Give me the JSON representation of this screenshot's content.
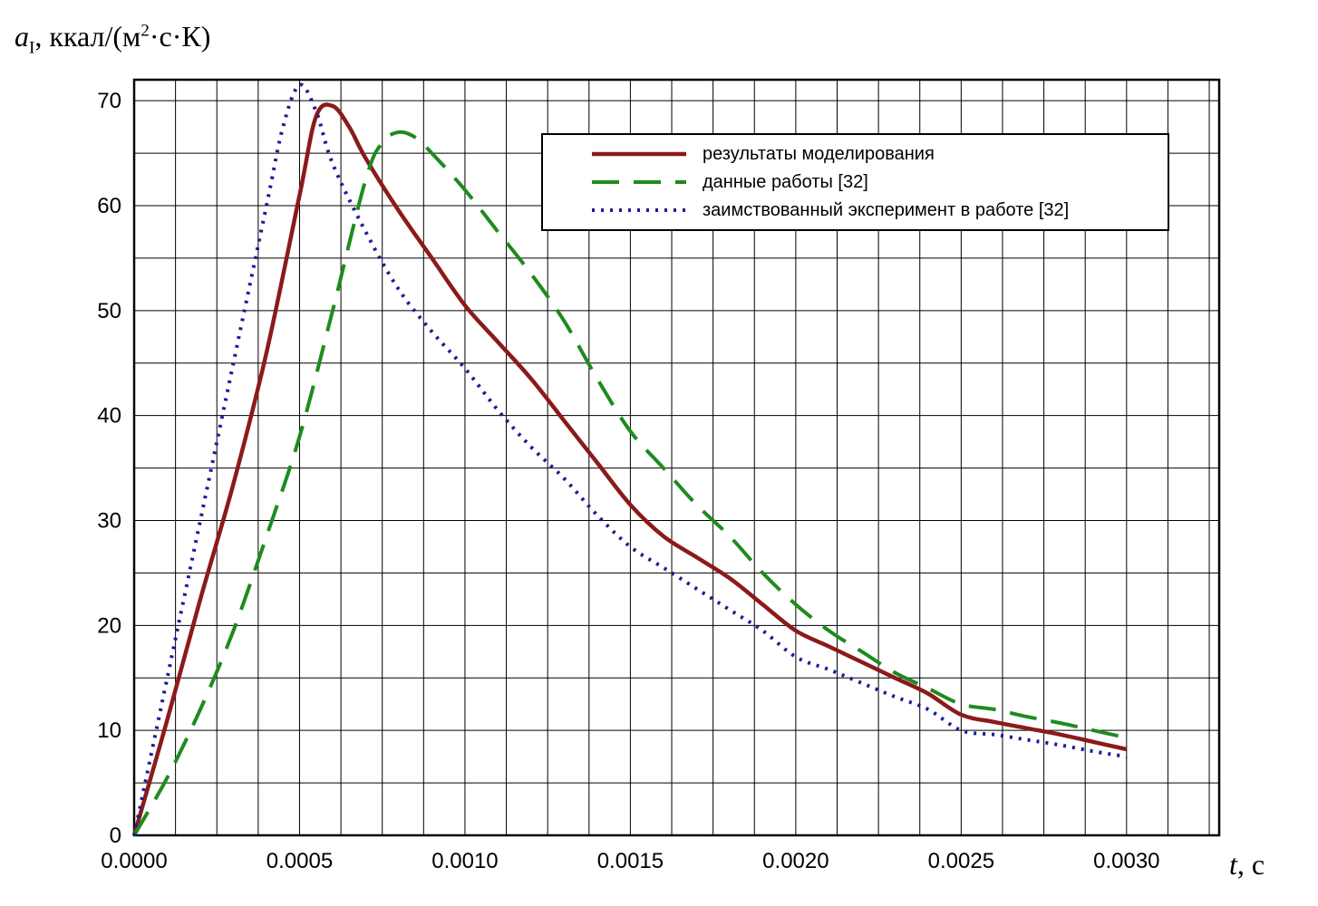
{
  "y_axis_title": {
    "variable": "a",
    "subscript": "I",
    "unit_prefix": ", ккал/(м",
    "superscript": "2",
    "unit_suffix": "·с·К)"
  },
  "x_axis_title": {
    "variable": "t",
    "suffix": ", с"
  },
  "chart_data": {
    "type": "line",
    "title": "",
    "xlabel": "t, с",
    "ylabel": "aI, ккал/(м2·с·К)",
    "xlim": [
      0,
      0.00328
    ],
    "ylim": [
      0,
      72
    ],
    "x_major_ticks": [
      0.0,
      0.0005,
      0.001,
      0.0015,
      0.002,
      0.0025,
      0.003
    ],
    "x_tick_labels": [
      "0.0000",
      "0.0005",
      "0.0010",
      "0.0015",
      "0.0020",
      "0.0025",
      "0.0030"
    ],
    "x_grid_step": 0.000125,
    "y_ticks": [
      0,
      10,
      20,
      30,
      40,
      50,
      60,
      70
    ],
    "y_grid_step": 5,
    "grid": true,
    "grid_color": "#000000",
    "frame_color": "#000000",
    "background": "#ffffff",
    "legend_position": "upper-right-inside",
    "series": [
      {
        "name": "результаты моделирования",
        "color": "#8b1a1a",
        "style": "solid",
        "width": 4.5,
        "x": [
          0,
          0.0001,
          0.0002,
          0.0003,
          0.0004,
          0.0005,
          0.00055,
          0.0006,
          0.00065,
          0.0007,
          0.0008,
          0.0009,
          0.001,
          0.0011,
          0.0012,
          0.0013,
          0.0014,
          0.0015,
          0.0016,
          0.0017,
          0.0018,
          0.0019,
          0.002,
          0.0021,
          0.0022,
          0.0023,
          0.0024,
          0.0025,
          0.0026,
          0.0027,
          0.0028,
          0.0029,
          0.003
        ],
        "y": [
          0,
          11,
          22.5,
          33.5,
          46,
          61,
          68.5,
          69.5,
          67.5,
          64.5,
          59.5,
          55,
          50.5,
          47,
          43.5,
          39.5,
          35.5,
          31.5,
          28.5,
          26.5,
          24.5,
          22,
          19.5,
          18,
          16.5,
          15,
          13.5,
          11.5,
          10.8,
          10.2,
          9.6,
          8.9,
          8.2
        ]
      },
      {
        "name": "данные работы [32]",
        "color": "#1e8b1e",
        "style": "dashed",
        "width": 4,
        "x": [
          0,
          0.0001,
          0.0002,
          0.0003,
          0.0004,
          0.0005,
          0.0006,
          0.0007,
          0.00075,
          0.0008,
          0.00085,
          0.0009,
          0.001,
          0.0011,
          0.0012,
          0.0013,
          0.0014,
          0.0015,
          0.0016,
          0.0017,
          0.0018,
          0.0019,
          0.002,
          0.0021,
          0.0022,
          0.0023,
          0.0024,
          0.0025,
          0.0026,
          0.0027,
          0.0028,
          0.0029,
          0.003
        ],
        "y": [
          0,
          5.5,
          12,
          19.5,
          28.5,
          38,
          50,
          62.5,
          66,
          67,
          66.5,
          65,
          61.5,
          57.5,
          53.5,
          49,
          43.5,
          38.5,
          35,
          31.5,
          28.5,
          25,
          22,
          19.5,
          17.5,
          15.5,
          14,
          12.5,
          12,
          11.3,
          10.7,
          10,
          9.3
        ]
      },
      {
        "name": "заимствованный эксперимент в работе [32]",
        "color": "#1c1c96",
        "style": "dotted",
        "width": 4,
        "x": [
          0,
          0.0001,
          0.0002,
          0.0003,
          0.0004,
          0.00045,
          0.0005,
          0.00055,
          0.0006,
          0.0007,
          0.0008,
          0.0009,
          0.001,
          0.0011,
          0.0012,
          0.0013,
          0.0014,
          0.0015,
          0.0016,
          0.0017,
          0.0018,
          0.0019,
          0.002,
          0.0021,
          0.0022,
          0.0023,
          0.0024,
          0.0025,
          0.0026,
          0.0027,
          0.0028,
          0.0029,
          0.003
        ],
        "y": [
          0,
          15,
          30,
          45,
          60,
          67.5,
          71.5,
          69,
          64,
          57.5,
          52,
          48,
          44.5,
          40.5,
          37,
          34,
          30.5,
          27.5,
          25.5,
          23.5,
          21.5,
          19.5,
          17,
          15.8,
          14.5,
          13.2,
          12,
          10,
          9.6,
          9.1,
          8.6,
          8,
          7.5
        ]
      }
    ]
  }
}
